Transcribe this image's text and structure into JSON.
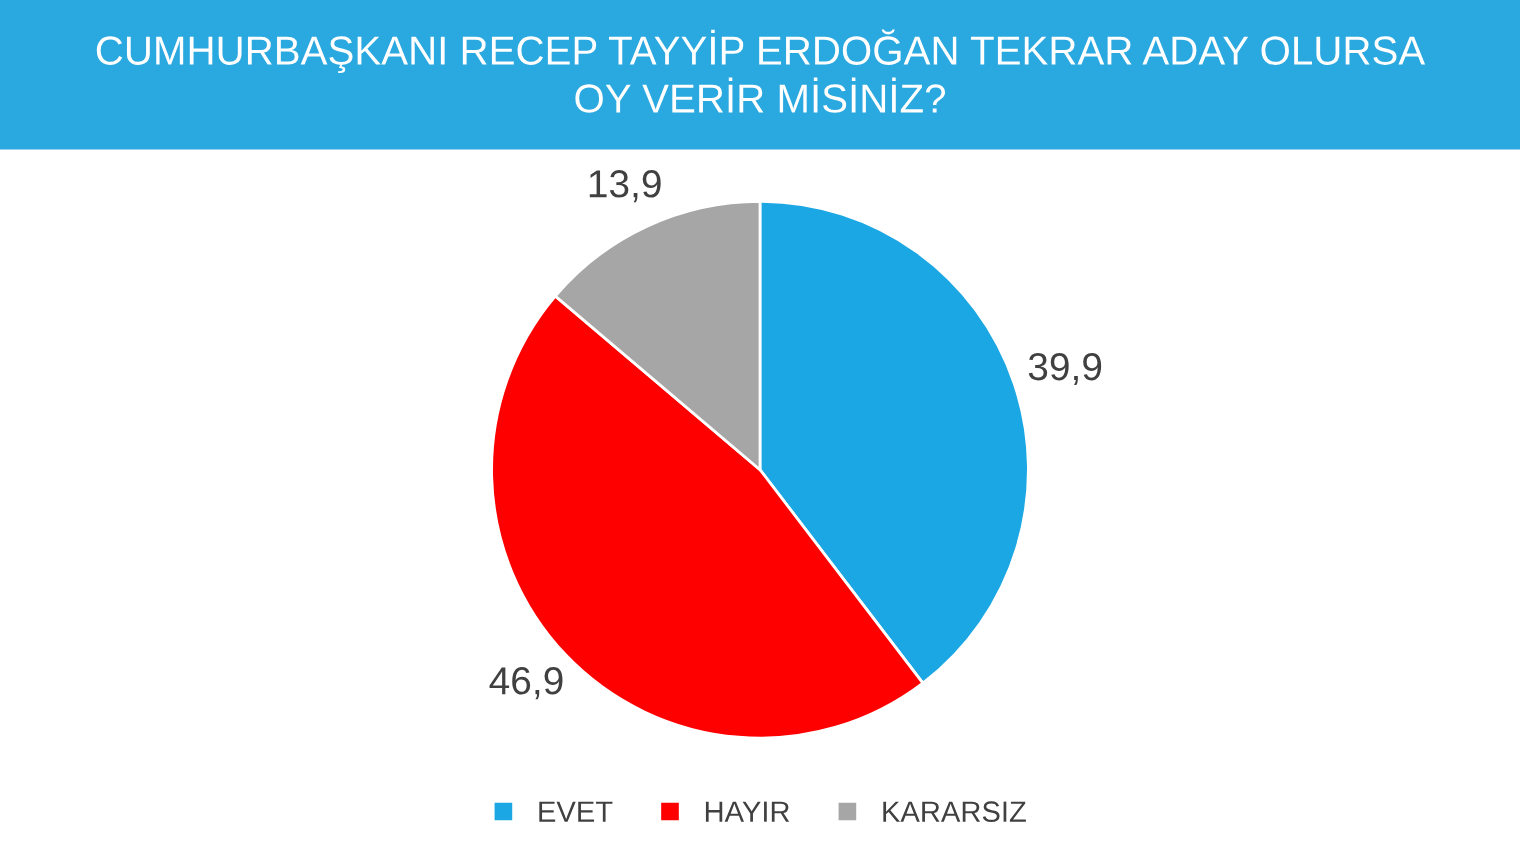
{
  "chart_data": {
    "type": "pie",
    "title": "CUMHURBAŞKANI RECEP TAYYİP ERDOĞAN TEKRAR ADAY OLURSA\nOY VERİR MİSİNİZ?",
    "categories": [
      "EVET",
      "HAYIR",
      "KARARSIZ"
    ],
    "values": [
      39.9,
      46.9,
      13.9
    ],
    "value_labels": [
      "39,9",
      "46,9",
      "13,9"
    ],
    "colors": [
      "#1ba7e3",
      "#fe0000",
      "#a6a6a6"
    ],
    "legend": "bottom"
  }
}
